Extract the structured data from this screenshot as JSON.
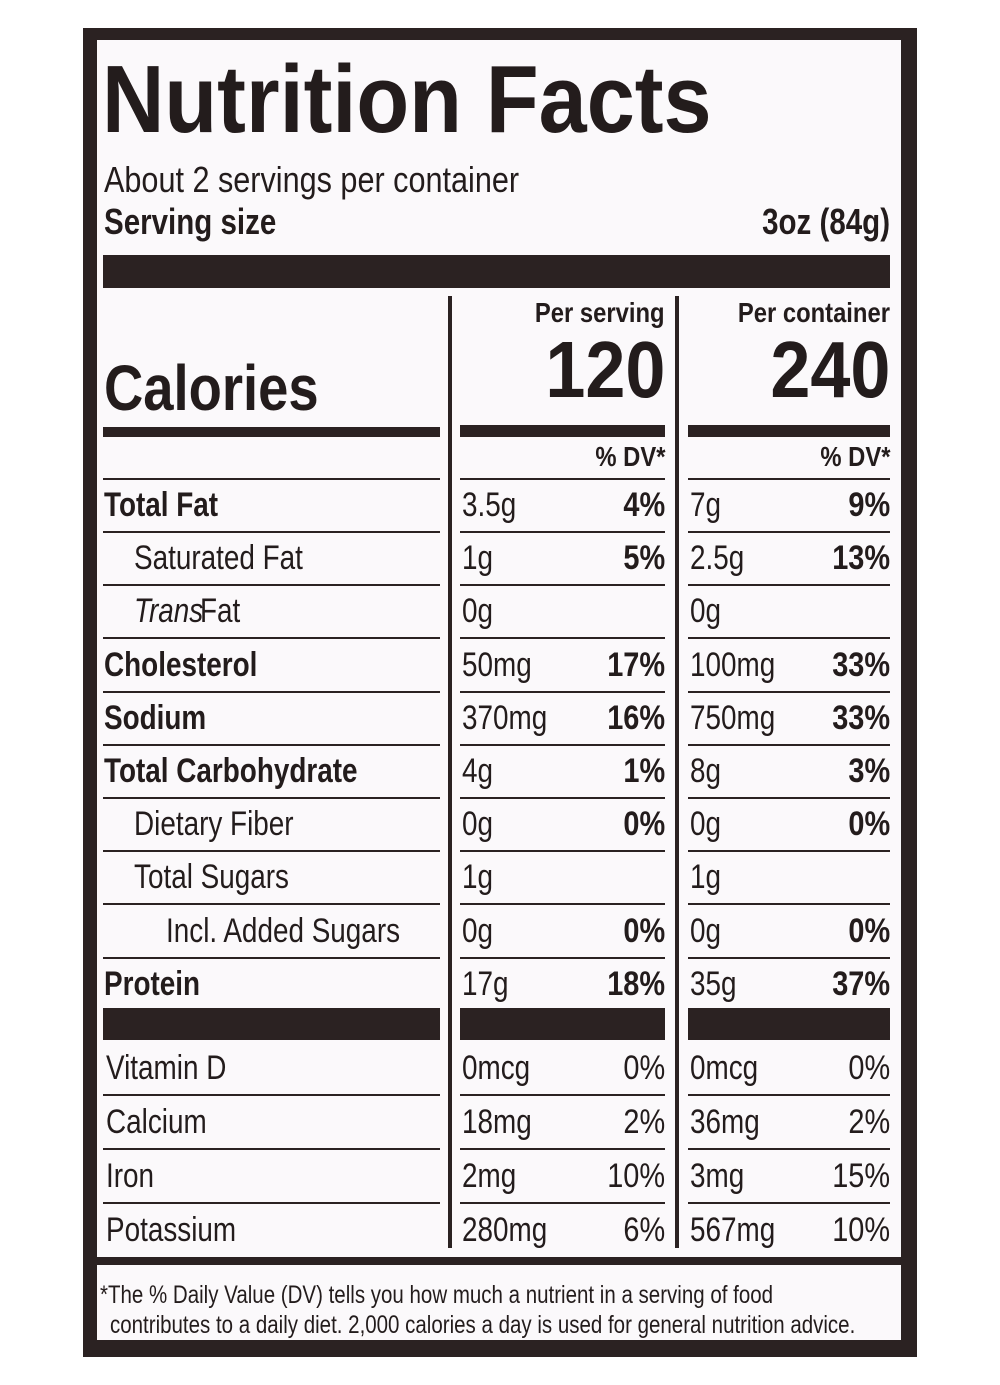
{
  "title": "Nutrition Facts",
  "servings_per_container": "About 2 servings per container",
  "serving_size": {
    "label": "Serving size",
    "value": "3oz (84g)"
  },
  "columns": [
    "Per serving",
    "Per container"
  ],
  "calories": {
    "label": "Calories",
    "values": [
      "120",
      "240"
    ]
  },
  "dv_header": "% DV*",
  "nutrients": [
    {
      "label": "Total Fat",
      "style": "bold",
      "serving": [
        "3.5g",
        "4%"
      ],
      "container": [
        "7g",
        "9%"
      ]
    },
    {
      "label": "Saturated Fat",
      "style": "indent",
      "serving": [
        "1g",
        "5%"
      ],
      "container": [
        "2.5g",
        "13%"
      ]
    },
    {
      "label_italic": "Trans",
      "label": "Fat",
      "style": "indent",
      "serving": [
        "0g"
      ],
      "container": [
        "0g"
      ]
    },
    {
      "label": "Cholesterol",
      "style": "bold",
      "serving": [
        "50mg",
        "17%"
      ],
      "container": [
        "100mg",
        "33%"
      ]
    },
    {
      "label": "Sodium",
      "style": "bold",
      "serving": [
        "370mg",
        "16%"
      ],
      "container": [
        "750mg",
        "33%"
      ]
    },
    {
      "label": "Total Carbohydrate",
      "style": "bold",
      "serving": [
        "4g",
        "1%"
      ],
      "container": [
        "8g",
        "3%"
      ]
    },
    {
      "label": "Dietary Fiber",
      "style": "indent",
      "serving": [
        "0g",
        "0%"
      ],
      "container": [
        "0g",
        "0%"
      ]
    },
    {
      "label": "Total Sugars",
      "style": "indent",
      "serving": [
        "1g"
      ],
      "container": [
        "1g"
      ]
    },
    {
      "label": "Incl. Added Sugars",
      "style": "indent2",
      "serving": [
        "0g",
        "0%"
      ],
      "container": [
        "0g",
        "0%"
      ]
    },
    {
      "label": "Protein",
      "style": "bold",
      "serving": [
        "17g",
        "18%"
      ],
      "container": [
        "35g",
        "37%"
      ]
    }
  ],
  "vitamins": [
    {
      "label": "Vitamin D",
      "serving": [
        "0mcg",
        "0%"
      ],
      "container": [
        "0mcg",
        "0%"
      ]
    },
    {
      "label": "Calcium",
      "serving": [
        "18mg",
        "2%"
      ],
      "container": [
        "36mg",
        "2%"
      ]
    },
    {
      "label": "Iron",
      "serving": [
        "2mg",
        "10%"
      ],
      "container": [
        "3mg",
        "15%"
      ]
    },
    {
      "label": "Potassium",
      "serving": [
        "280mg",
        "6%"
      ],
      "container": [
        "567mg",
        "10%"
      ]
    }
  ],
  "footnote": [
    "*The % Daily Value (DV) tells you how much a nutrient in a serving of food",
    "contributes to a daily diet. 2,000 calories a day is used for general nutrition advice."
  ]
}
